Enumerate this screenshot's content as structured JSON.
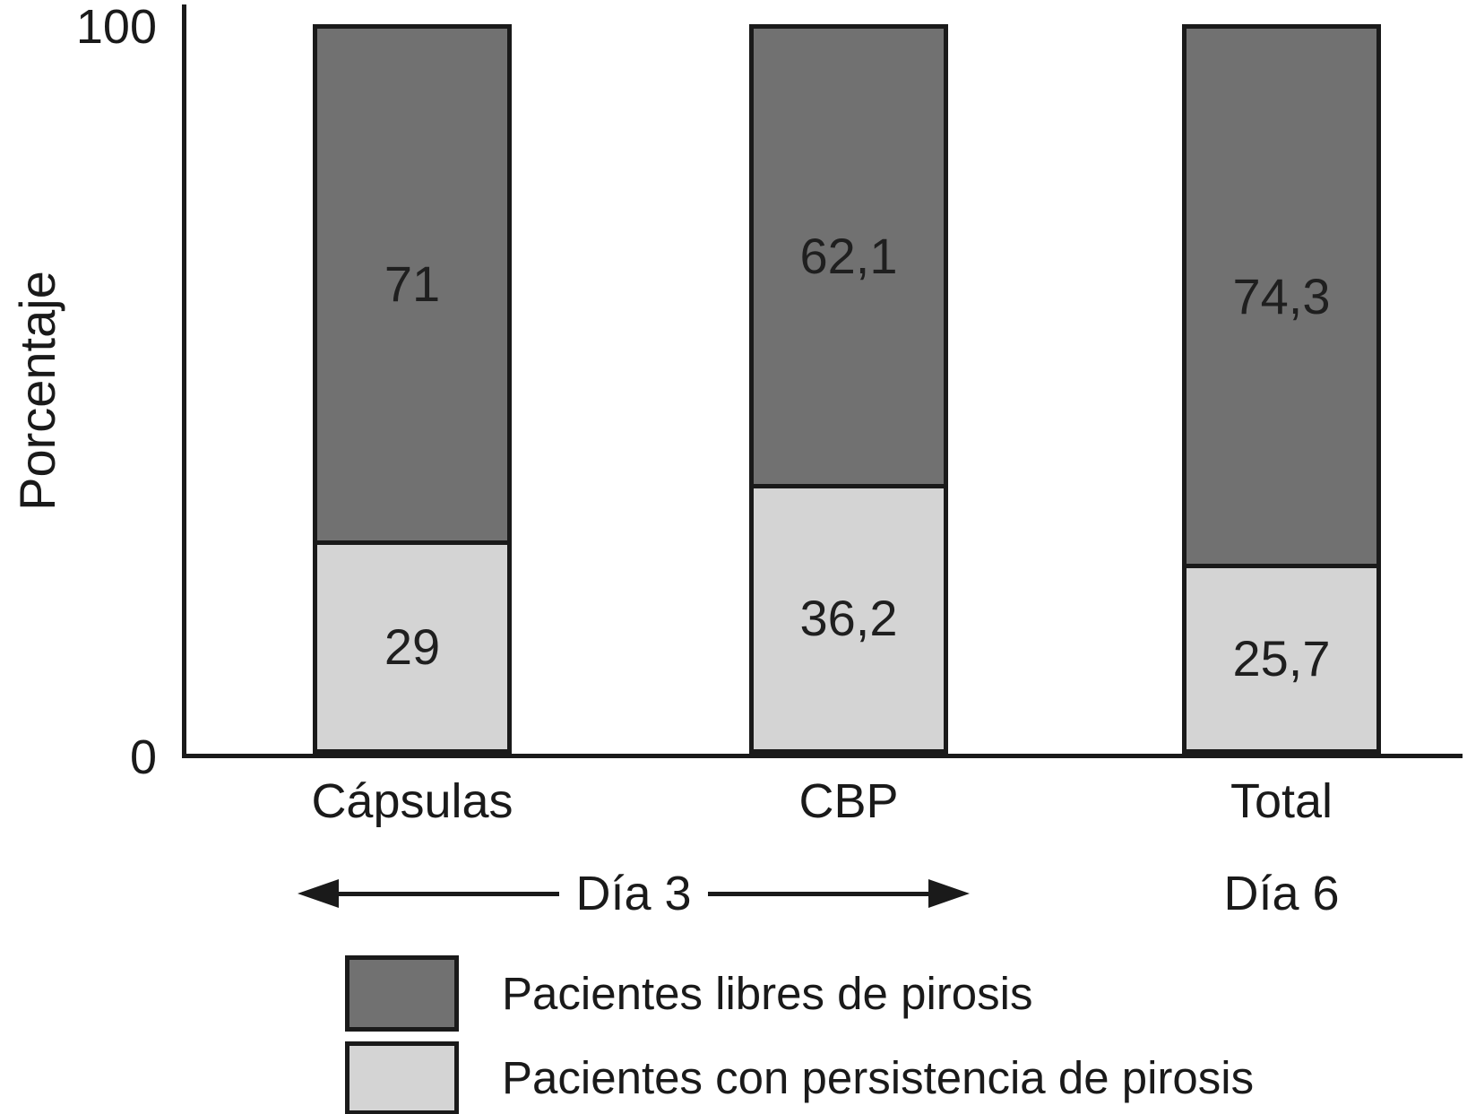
{
  "chart_data": {
    "type": "bar",
    "subtype": "stacked-percentage",
    "title": "",
    "xlabel": "",
    "ylabel": "Porcentaje",
    "ylim": [
      0,
      100
    ],
    "yticks": [
      0,
      100
    ],
    "yticks_display": {
      "top": "100",
      "bottom": "0"
    },
    "grid": false,
    "categories": [
      "Cápsulas",
      "CBP",
      "Total"
    ],
    "series": [
      {
        "name": "Pacientes libres de pirosis",
        "position": "top",
        "color": "#717171",
        "values": [
          71,
          62.1,
          74.3
        ],
        "value_labels": [
          "71",
          "62,1",
          "74,3"
        ]
      },
      {
        "name": "Pacientes con persistencia de pirosis",
        "position": "bottom",
        "color": "#d4d4d4",
        "values": [
          29,
          36.2,
          25.7
        ],
        "value_labels": [
          "29",
          "36,2",
          "25,7"
        ]
      }
    ],
    "group_annotations": [
      {
        "label": "Día 3",
        "covers": [
          "Cápsulas",
          "CBP"
        ],
        "style": "double-headed-arrow"
      },
      {
        "label": "Día 6",
        "covers": [
          "Total"
        ],
        "style": "text"
      }
    ],
    "legend": {
      "position": "bottom-left",
      "entries": [
        {
          "label": "Pacientes libres de pirosis",
          "color": "#717171"
        },
        {
          "label": "Pacientes con persistencia de pirosis",
          "color": "#d4d4d4"
        }
      ]
    },
    "colors": {
      "outline": "#1a1a1a",
      "background": "#ffffff"
    }
  }
}
